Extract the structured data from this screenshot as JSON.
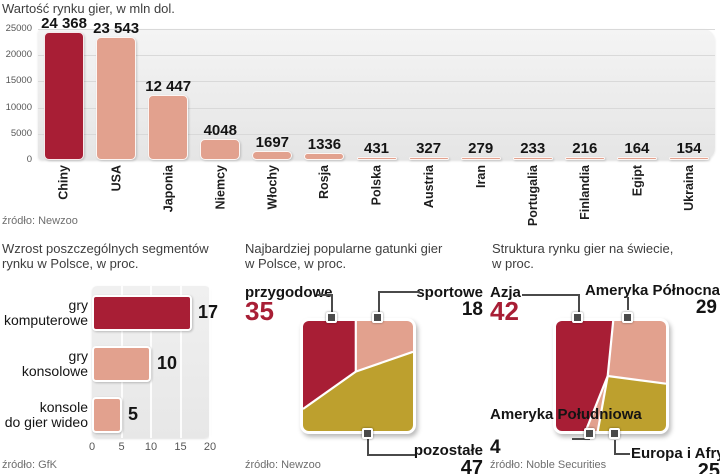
{
  "colors": {
    "dark_red": "#a81e35",
    "salmon": "#e2a18e",
    "gold": "#bda02e",
    "marker_gray": "#4a4a4a",
    "grid_gray": "#d9d9d9",
    "text_dark": "#1d1d1d",
    "text_gray": "#6e6e6e"
  },
  "chart_data": [
    {
      "id": "market-value",
      "type": "bar",
      "title": "Wartość rynku gier, w mln dol.",
      "source": "źródło: Newzoo",
      "ylim": [
        0,
        25000
      ],
      "yticks": [
        25000,
        20000,
        15000,
        10000,
        5000,
        0
      ],
      "grid": true,
      "categories": [
        "Chiny",
        "USA",
        "Japonia",
        "Niemcy",
        "Włochy",
        "Rosja",
        "Polska",
        "Austria",
        "Iran",
        "Portugalia",
        "Finlandia",
        "Egipt",
        "Ukraina"
      ],
      "values": [
        24368,
        23543,
        12447,
        4048,
        1697,
        1336,
        431,
        327,
        279,
        233,
        216,
        164,
        154
      ],
      "value_labels": [
        "24 368",
        "23 543",
        "12 447",
        "4048",
        "1697",
        "1336",
        "431",
        "327",
        "279",
        "233",
        "216",
        "164",
        "154"
      ],
      "bar_colors": [
        "dark_red",
        "salmon",
        "salmon",
        "salmon",
        "salmon",
        "salmon",
        "salmon",
        "salmon",
        "salmon",
        "salmon",
        "salmon",
        "salmon",
        "salmon"
      ]
    },
    {
      "id": "segments-growth-poland",
      "type": "bar",
      "orientation": "horizontal",
      "title_lines": [
        "Wzrost poszczególnych segmentów",
        "rynku w Polsce, w proc."
      ],
      "source": "źródło: GfK",
      "xlim": [
        0,
        20
      ],
      "xticks": [
        0,
        5,
        10,
        15,
        20
      ],
      "grid": true,
      "categories": [
        "gry komputerowe",
        "gry konsolowe",
        "konsole do gier wideo"
      ],
      "categories_lines": [
        [
          "gry",
          "komputerowe"
        ],
        [
          "gry",
          "konsolowe"
        ],
        [
          "konsole",
          "do gier wideo"
        ]
      ],
      "values": [
        17,
        10,
        5
      ],
      "bar_colors": [
        "dark_red",
        "salmon",
        "salmon"
      ]
    },
    {
      "id": "popular-genres-poland",
      "type": "pie",
      "shape": "square",
      "title_lines": [
        "Najbardziej popularne gatunki gier",
        "w Polsce, w proc."
      ],
      "source": "źródło: Newzoo",
      "slices": [
        {
          "label": "przygodowe",
          "value": 35,
          "color": "dark_red"
        },
        {
          "label": "sportowe",
          "value": 18,
          "color": "salmon"
        },
        {
          "label": "pozostałe",
          "value": 47,
          "color": "gold"
        }
      ]
    },
    {
      "id": "world-market-structure",
      "type": "pie",
      "shape": "square",
      "title_lines": [
        "Struktura rynku gier na świecie,",
        "w proc."
      ],
      "source": "źródło: Noble Securities",
      "slices": [
        {
          "label": "Azja",
          "value": 42,
          "color": "dark_red"
        },
        {
          "label": "Ameryka Północna",
          "value": 29,
          "color": "salmon"
        },
        {
          "label": "Ameryka Południowa",
          "value": 4,
          "color": "salmon"
        },
        {
          "label": "Europa i Afryka",
          "value": 25,
          "color": "gold"
        }
      ]
    }
  ]
}
